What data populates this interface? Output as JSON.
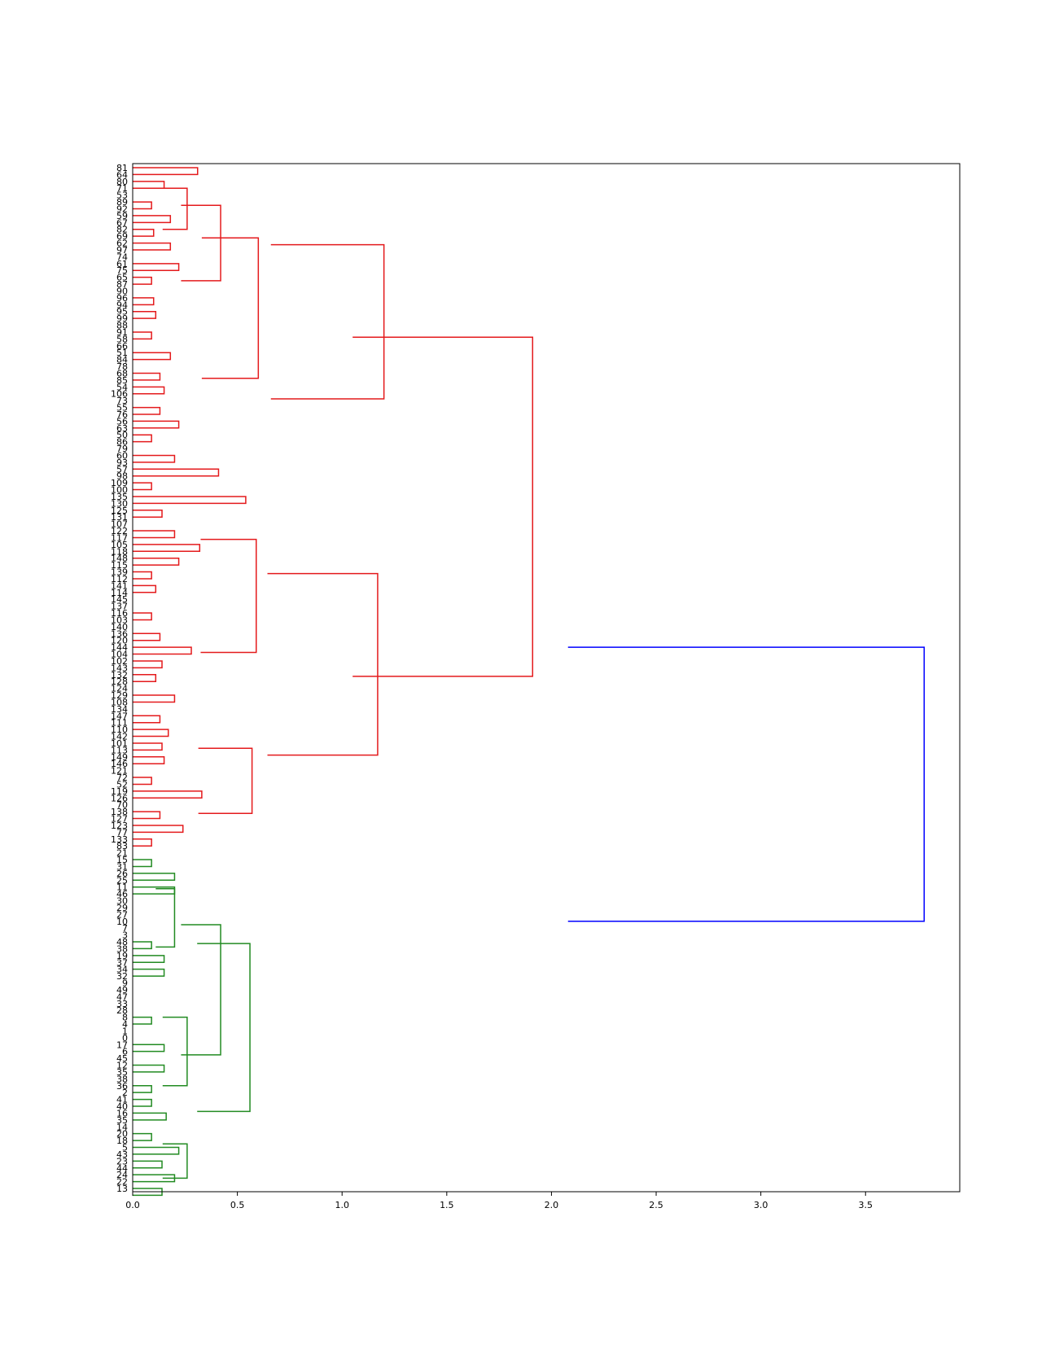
{
  "chart_data": {
    "type": "dendrogram",
    "orientation": "left",
    "xlim": [
      0.0,
      3.95
    ],
    "x_ticks": [
      "0.0",
      "0.5",
      "1.0",
      "1.5",
      "2.0",
      "2.5",
      "3.0",
      "3.5"
    ],
    "grid": false,
    "colors": {
      "cluster_a": "#e41a1c",
      "cluster_b": "#228b22",
      "root": "#0000ff"
    },
    "leaves": [
      "81",
      "64",
      "80",
      "71",
      "53",
      "89",
      "92",
      "59",
      "67",
      "82",
      "69",
      "62",
      "97",
      "74",
      "61",
      "75",
      "65",
      "87",
      "90",
      "96",
      "94",
      "95",
      "99",
      "88",
      "91",
      "58",
      "66",
      "51",
      "84",
      "78",
      "68",
      "85",
      "54",
      "106",
      "73",
      "55",
      "76",
      "56",
      "63",
      "50",
      "86",
      "79",
      "60",
      "93",
      "57",
      "98",
      "109",
      "100",
      "135",
      "130",
      "125",
      "131",
      "107",
      "122",
      "117",
      "105",
      "118",
      "148",
      "115",
      "139",
      "112",
      "141",
      "114",
      "145",
      "137",
      "116",
      "103",
      "140",
      "136",
      "120",
      "144",
      "104",
      "102",
      "143",
      "132",
      "128",
      "124",
      "129",
      "108",
      "134",
      "147",
      "111",
      "110",
      "142",
      "101",
      "113",
      "149",
      "146",
      "121",
      "72",
      "52",
      "119",
      "126",
      "70",
      "138",
      "127",
      "123",
      "77",
      "133",
      "83",
      "21",
      "15",
      "31",
      "26",
      "25",
      "11",
      "46",
      "30",
      "29",
      "27",
      "10",
      "7",
      "3",
      "48",
      "38",
      "19",
      "37",
      "34",
      "32",
      "9",
      "49",
      "47",
      "33",
      "28",
      "8",
      "4",
      "1",
      "0",
      "17",
      "6",
      "45",
      "12",
      "35",
      "38",
      "36",
      "2",
      "41",
      "40",
      "16",
      "35",
      "14",
      "20",
      "18",
      "5",
      "43",
      "23",
      "44",
      "24",
      "22",
      "13"
    ],
    "merges": [
      {
        "i": 0,
        "j": 1,
        "h": 0.31,
        "c": "a"
      },
      {
        "i": 2,
        "j": 3,
        "h": 0.15,
        "c": "a"
      },
      {
        "i": 5,
        "j": 6,
        "h": 0.09,
        "c": "a"
      },
      {
        "i": 7,
        "j": 8,
        "h": 0.18,
        "c": "a"
      },
      {
        "i": 9,
        "j": 10,
        "h": 0.1,
        "c": "a"
      },
      {
        "i": 11,
        "j": 12,
        "h": 0.18,
        "c": "a"
      },
      {
        "i": 14,
        "j": 15,
        "h": 0.22,
        "c": "a"
      },
      {
        "i": 16,
        "j": 17,
        "h": 0.09,
        "c": "a"
      },
      {
        "i": 19,
        "j": 20,
        "h": 0.1,
        "c": "a"
      },
      {
        "i": 21,
        "j": 22,
        "h": 0.11,
        "c": "a"
      },
      {
        "i": 24,
        "j": 25,
        "h": 0.09,
        "c": "a"
      },
      {
        "i": 27,
        "j": 28,
        "h": 0.18,
        "c": "a"
      },
      {
        "i": 30,
        "j": 31,
        "h": 0.13,
        "c": "a"
      },
      {
        "i": 32,
        "j": 33,
        "h": 0.15,
        "c": "a"
      },
      {
        "i": 35,
        "j": 36,
        "h": 0.13,
        "c": "a"
      },
      {
        "i": 37,
        "j": 38,
        "h": 0.22,
        "c": "a"
      },
      {
        "i": 39,
        "j": 40,
        "h": 0.09,
        "c": "a"
      },
      {
        "i": 42,
        "j": 43,
        "h": 0.2,
        "c": "a"
      },
      {
        "i": 44,
        "j": 45,
        "h": 0.41,
        "c": "a"
      },
      {
        "i": 46,
        "j": 47,
        "h": 0.09,
        "c": "a"
      },
      {
        "i": 48,
        "j": 49,
        "h": 0.54,
        "c": "a"
      },
      {
        "i": 50,
        "j": 51,
        "h": 0.14,
        "c": "a"
      },
      {
        "i": 53,
        "j": 54,
        "h": 0.2,
        "c": "a"
      },
      {
        "i": 55,
        "j": 56,
        "h": 0.32,
        "c": "a"
      },
      {
        "i": 57,
        "j": 58,
        "h": 0.22,
        "c": "a"
      },
      {
        "i": 59,
        "j": 60,
        "h": 0.09,
        "c": "a"
      },
      {
        "i": 61,
        "j": 62,
        "h": 0.11,
        "c": "a"
      },
      {
        "i": 65,
        "j": 66,
        "h": 0.09,
        "c": "a"
      },
      {
        "i": 68,
        "j": 69,
        "h": 0.13,
        "c": "a"
      },
      {
        "i": 70,
        "j": 71,
        "h": 0.28,
        "c": "a"
      },
      {
        "i": 72,
        "j": 73,
        "h": 0.14,
        "c": "a"
      },
      {
        "i": 74,
        "j": 75,
        "h": 0.11,
        "c": "a"
      },
      {
        "i": 77,
        "j": 78,
        "h": 0.2,
        "c": "a"
      },
      {
        "i": 80,
        "j": 81,
        "h": 0.13,
        "c": "a"
      },
      {
        "i": 82,
        "j": 83,
        "h": 0.17,
        "c": "a"
      },
      {
        "i": 84,
        "j": 85,
        "h": 0.14,
        "c": "a"
      },
      {
        "i": 86,
        "j": 87,
        "h": 0.15,
        "c": "a"
      },
      {
        "i": 89,
        "j": 90,
        "h": 0.09,
        "c": "a"
      },
      {
        "i": 91,
        "j": 92,
        "h": 0.33,
        "c": "a"
      },
      {
        "i": 94,
        "j": 95,
        "h": 0.13,
        "c": "a"
      },
      {
        "i": 96,
        "j": 97,
        "h": 0.24,
        "c": "a"
      },
      {
        "i": 98,
        "j": 99,
        "h": 0.09,
        "c": "a"
      },
      {
        "i": 101,
        "j": 102,
        "h": 0.09,
        "c": "b"
      },
      {
        "i": 103,
        "j": 104,
        "h": 0.2,
        "c": "b"
      },
      {
        "i": 105,
        "j": 106,
        "h": 0.2,
        "c": "b"
      },
      {
        "i": 113,
        "j": 114,
        "h": 0.09,
        "c": "b"
      },
      {
        "i": 115,
        "j": 116,
        "h": 0.15,
        "c": "b"
      },
      {
        "i": 117,
        "j": 118,
        "h": 0.15,
        "c": "b"
      },
      {
        "i": 124,
        "j": 125,
        "h": 0.09,
        "c": "b"
      },
      {
        "i": 128,
        "j": 129,
        "h": 0.15,
        "c": "b"
      },
      {
        "i": 131,
        "j": 132,
        "h": 0.15,
        "c": "b"
      },
      {
        "i": 134,
        "j": 135,
        "h": 0.09,
        "c": "b"
      },
      {
        "i": 136,
        "j": 137,
        "h": 0.09,
        "c": "b"
      },
      {
        "i": 138,
        "j": 139,
        "h": 0.16,
        "c": "b"
      },
      {
        "i": 141,
        "j": 142,
        "h": 0.09,
        "c": "b"
      },
      {
        "i": 143,
        "j": 144,
        "h": 0.22,
        "c": "b"
      },
      {
        "i": 145,
        "j": 146,
        "h": 0.14,
        "c": "b"
      },
      {
        "i": 147,
        "j": 148,
        "h": 0.2,
        "c": "b"
      },
      {
        "i": 149,
        "j": 150,
        "h": 0.14,
        "c": "b"
      }
    ],
    "top_links": [
      {
        "y1": 0,
        "y2": 12,
        "h": 0.26,
        "c": "a"
      },
      {
        "y1": 0,
        "y2": 22,
        "h": 0.42,
        "c": "a"
      },
      {
        "y1": 0,
        "y2": 41,
        "h": 0.6,
        "c": "a"
      },
      {
        "y1": 0,
        "y2": 45,
        "h": 1.2,
        "c": "a"
      },
      {
        "y1": 46,
        "y2": 79,
        "h": 0.59,
        "c": "a"
      },
      {
        "y1": 80,
        "y2": 99,
        "h": 0.57,
        "c": "a"
      },
      {
        "y1": 46,
        "y2": 99,
        "h": 1.17,
        "c": "a"
      },
      {
        "y1": 0,
        "y2": 99,
        "h": 1.91,
        "c": "a"
      },
      {
        "y1": 101,
        "y2": 118,
        "h": 0.2,
        "c": "b"
      },
      {
        "y1": 119,
        "y2": 139,
        "h": 0.26,
        "c": "b"
      },
      {
        "y1": 101,
        "y2": 139,
        "h": 0.42,
        "c": "b"
      },
      {
        "y1": 140,
        "y2": 150,
        "h": 0.26,
        "c": "b"
      },
      {
        "y1": 101,
        "y2": 150,
        "h": 0.56,
        "c": "b"
      },
      {
        "y1": 50,
        "y2": 130,
        "h": 3.78,
        "c": "root"
      }
    ]
  }
}
